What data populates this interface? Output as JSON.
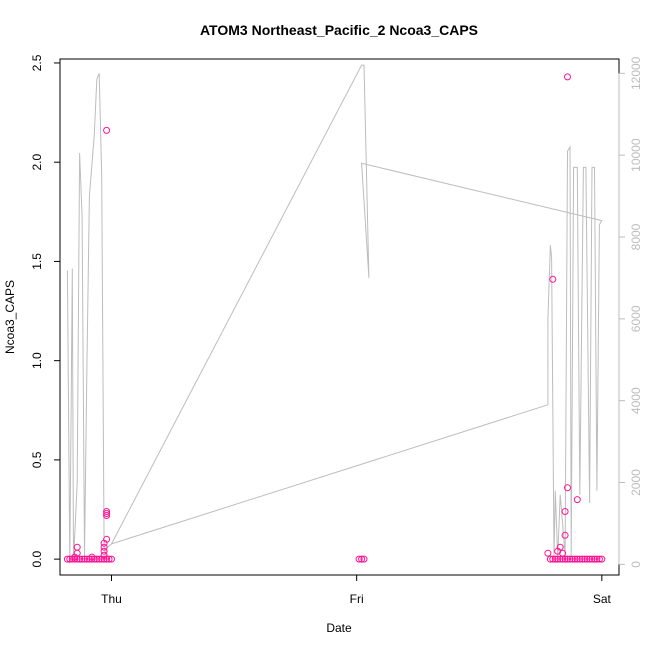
{
  "chart_data": {
    "type": "scatter",
    "title": "ATOM3 Northeast_Pacific_2 Ncoa3_CAPS",
    "xlabel": "Date",
    "ylabel": "Ncoa3_CAPS",
    "x_ticks": [
      {
        "value": 1.0,
        "label": "Thu"
      },
      {
        "value": 2.0,
        "label": "Fri"
      },
      {
        "value": 3.0,
        "label": "Sat"
      }
    ],
    "xlim": [
      0.79,
      3.07
    ],
    "ylim": [
      -0.08,
      2.52
    ],
    "y_ticks": [
      0,
      0.5,
      1.0,
      1.5,
      2.0,
      2.5
    ],
    "y_tick_labels": [
      "0.0",
      "0.5",
      "1.0",
      "1.5",
      "2.0",
      "2.5"
    ],
    "y2lim": [
      -260,
      12350
    ],
    "y2_ticks": [
      0,
      2000,
      4000,
      6000,
      8000,
      10000,
      12000
    ],
    "y2_tick_labels": [
      "0",
      "2000",
      "4000",
      "6000",
      "8000",
      "10000",
      "12000"
    ],
    "colors": {
      "points": "#ff1493",
      "line": "#bdbdbd",
      "axis_right": "#bdbdbd"
    },
    "series": [
      {
        "kind": "points",
        "axis": "left",
        "points": [
          [
            0.82,
            0.0
          ],
          [
            0.83,
            0.0
          ],
          [
            0.84,
            0.0
          ],
          [
            0.85,
            0.0
          ],
          [
            0.86,
            0.0
          ],
          [
            0.87,
            0.0
          ],
          [
            0.88,
            0.0
          ],
          [
            0.89,
            0.0
          ],
          [
            0.9,
            0.0
          ],
          [
            0.91,
            0.0
          ],
          [
            0.92,
            0.0
          ],
          [
            0.93,
            0.0
          ],
          [
            0.94,
            0.0
          ],
          [
            0.95,
            0.0
          ],
          [
            0.96,
            0.0
          ],
          [
            0.97,
            0.0
          ],
          [
            0.98,
            0.0
          ],
          [
            0.99,
            0.0
          ],
          [
            1.0,
            0.0
          ],
          [
            0.85,
            0.01
          ],
          [
            0.86,
            0.06
          ],
          [
            0.86,
            0.03
          ],
          [
            0.92,
            0.01
          ],
          [
            0.97,
            0.02
          ],
          [
            0.97,
            0.04
          ],
          [
            0.97,
            0.06
          ],
          [
            0.97,
            0.08
          ],
          [
            0.98,
            0.1
          ],
          [
            0.98,
            0.22
          ],
          [
            0.98,
            0.23
          ],
          [
            0.98,
            0.24
          ],
          [
            0.98,
            2.16
          ],
          [
            2.01,
            0.0
          ],
          [
            2.02,
            0.0
          ],
          [
            2.03,
            0.0
          ],
          [
            2.78,
            0.03
          ],
          [
            2.79,
            0.0
          ],
          [
            2.8,
            0.0
          ],
          [
            2.81,
            0.0
          ],
          [
            2.82,
            0.0
          ],
          [
            2.83,
            0.0
          ],
          [
            2.84,
            0.0
          ],
          [
            2.85,
            0.0
          ],
          [
            2.86,
            0.0
          ],
          [
            2.87,
            0.0
          ],
          [
            2.88,
            0.0
          ],
          [
            2.89,
            0.0
          ],
          [
            2.9,
            0.0
          ],
          [
            2.91,
            0.0
          ],
          [
            2.92,
            0.0
          ],
          [
            2.93,
            0.0
          ],
          [
            2.94,
            0.0
          ],
          [
            2.95,
            0.0
          ],
          [
            2.96,
            0.0
          ],
          [
            2.97,
            0.0
          ],
          [
            2.98,
            0.0
          ],
          [
            2.99,
            0.0
          ],
          [
            3.0,
            0.0
          ],
          [
            2.8,
            1.41
          ],
          [
            2.82,
            0.04
          ],
          [
            2.83,
            0.06
          ],
          [
            2.84,
            0.03
          ],
          [
            2.85,
            0.12
          ],
          [
            2.85,
            0.24
          ],
          [
            2.86,
            0.36
          ],
          [
            2.86,
            2.43
          ],
          [
            2.9,
            0.3
          ]
        ]
      },
      {
        "kind": "line",
        "axis": "right",
        "points": [
          [
            0.82,
            7180
          ],
          [
            0.83,
            20
          ],
          [
            0.84,
            7230
          ],
          [
            0.845,
            70
          ],
          [
            0.86,
            2000
          ],
          [
            0.87,
            10050
          ],
          [
            0.88,
            8500
          ],
          [
            0.89,
            200
          ],
          [
            0.9,
            5000
          ],
          [
            0.91,
            9000
          ],
          [
            0.93,
            10500
          ],
          [
            0.94,
            11850
          ],
          [
            0.95,
            12000
          ],
          [
            0.96,
            9500
          ],
          [
            0.97,
            400
          ],
          [
            0.98,
            200
          ],
          [
            0.98,
            400
          ],
          [
            1.0,
            500
          ],
          [
            2.02,
            12200
          ],
          [
            2.03,
            12200
          ],
          [
            2.05,
            7000
          ],
          [
            2.02,
            9800
          ],
          [
            3.0,
            8400
          ],
          [
            2.99,
            8300
          ],
          [
            2.98,
            1800
          ],
          [
            2.97,
            9700
          ],
          [
            2.96,
            9700
          ],
          [
            2.95,
            1500
          ],
          [
            2.935,
            9700
          ],
          [
            2.925,
            9700
          ],
          [
            2.91,
            1700
          ],
          [
            2.9,
            9700
          ],
          [
            2.885,
            9700
          ],
          [
            2.875,
            200
          ],
          [
            2.87,
            10200
          ],
          [
            2.86,
            10100
          ],
          [
            2.85,
            200
          ],
          [
            2.84,
            1000
          ],
          [
            2.83,
            1700
          ],
          [
            2.82,
            150
          ],
          [
            2.81,
            1800
          ],
          [
            2.805,
            200
          ],
          [
            2.795,
            7500
          ],
          [
            2.79,
            7800
          ],
          [
            2.78,
            6000
          ],
          [
            2.78,
            3900
          ],
          [
            1.0,
            500
          ]
        ]
      }
    ]
  }
}
